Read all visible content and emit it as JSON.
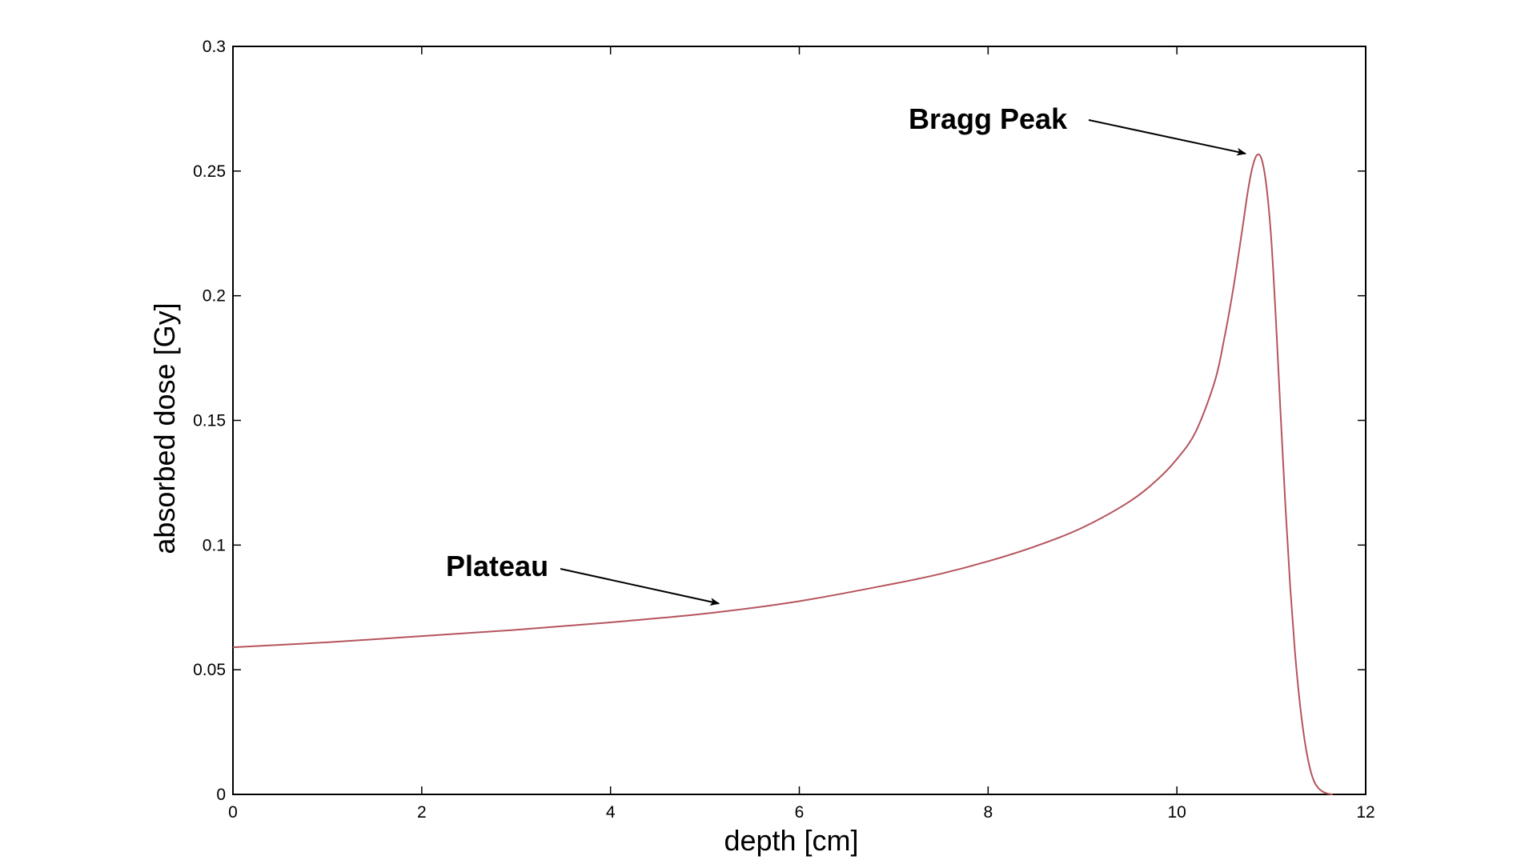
{
  "chart_data": {
    "type": "line",
    "title": "",
    "xlabel": "depth [cm]",
    "ylabel": "absorbed dose [Gy]",
    "xlim": [
      0,
      12
    ],
    "ylim": [
      0,
      0.3
    ],
    "x_ticks": [
      "0",
      "2",
      "4",
      "6",
      "8",
      "10",
      "12"
    ],
    "y_ticks": [
      "0",
      "0.05",
      "0.1",
      "0.15",
      "0.2",
      "0.25",
      "0.3"
    ],
    "grid": false,
    "line_color": "#b5545c",
    "series": [
      {
        "x": [
          0,
          1,
          2,
          3,
          4,
          5,
          6,
          7,
          7.5,
          8,
          8.5,
          9,
          9.5,
          9.8,
          10,
          10.2,
          10.4,
          10.5,
          10.6,
          10.7,
          10.75,
          10.8,
          10.85,
          10.9,
          10.95,
          11.0,
          11.05,
          11.1,
          11.15,
          11.2,
          11.25,
          11.3,
          11.35,
          11.4,
          11.45,
          11.5,
          11.55,
          11.6,
          11.65
        ],
        "y": [
          0.059,
          0.061,
          0.0635,
          0.066,
          0.069,
          0.0725,
          0.0775,
          0.0845,
          0.0885,
          0.0935,
          0.0995,
          0.107,
          0.1175,
          0.1265,
          0.1345,
          0.1455,
          0.1655,
          0.1825,
          0.2035,
          0.2285,
          0.2415,
          0.2515,
          0.2565,
          0.2545,
          0.2435,
          0.2225,
          0.1895,
          0.1515,
          0.1155,
          0.0835,
          0.0575,
          0.0375,
          0.0225,
          0.012,
          0.0055,
          0.0025,
          0.001,
          0.0003,
          0.0
        ]
      }
    ],
    "annotations": [
      {
        "text": "Bragg Peak",
        "target_x": 10.83,
        "target_y": 0.257
      },
      {
        "text": "Plateau",
        "target_x": 5.2,
        "target_y": 0.0775
      }
    ]
  }
}
